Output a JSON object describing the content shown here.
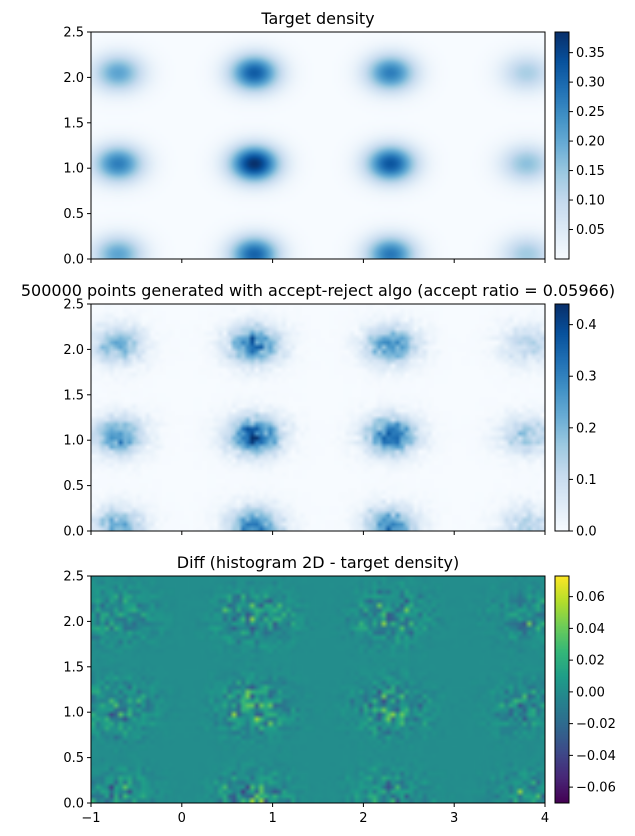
{
  "chart_data": [
    {
      "type": "heatmap",
      "title": "Target density",
      "xlim": [
        -1,
        4
      ],
      "ylim": [
        0,
        2.5
      ],
      "colormap": "Blues",
      "clim": [
        0,
        0.385
      ],
      "x_ticks": [
        "",
        "",
        "",
        "",
        "",
        ""
      ],
      "y_ticks": [
        "0.0",
        "0.5",
        "1.0",
        "1.5",
        "2.0",
        "2.5"
      ],
      "colorbar_ticks": [
        "0.05",
        "0.10",
        "0.15",
        "0.20",
        "0.25",
        "0.30",
        "0.35"
      ],
      "colorbar_values": [
        0.05,
        0.1,
        0.15,
        0.2,
        0.25,
        0.3,
        0.35
      ],
      "peaks": [
        {
          "x": -0.7,
          "y": 0.05,
          "value": 0.21
        },
        {
          "x": 0.8,
          "y": 0.05,
          "value": 0.31
        },
        {
          "x": 2.3,
          "y": 0.05,
          "value": 0.28
        },
        {
          "x": 3.8,
          "y": 0.05,
          "value": 0.14
        },
        {
          "x": -0.7,
          "y": 1.05,
          "value": 0.27
        },
        {
          "x": 0.8,
          "y": 1.05,
          "value": 0.385
        },
        {
          "x": 2.3,
          "y": 1.05,
          "value": 0.33
        },
        {
          "x": 3.8,
          "y": 1.05,
          "value": 0.16
        },
        {
          "x": -0.7,
          "y": 2.05,
          "value": 0.21
        },
        {
          "x": 0.8,
          "y": 2.05,
          "value": 0.32
        },
        {
          "x": 2.3,
          "y": 2.05,
          "value": 0.27
        },
        {
          "x": 3.8,
          "y": 2.05,
          "value": 0.13
        }
      ]
    },
    {
      "type": "heatmap",
      "title": "500000 points generated with accept-reject algo (accept ratio = 0.05966)",
      "xlim": [
        -1,
        4
      ],
      "ylim": [
        0,
        2.5
      ],
      "colormap": "Blues",
      "clim": [
        0,
        0.44
      ],
      "x_ticks": [
        "",
        "",
        "",
        "",
        "",
        ""
      ],
      "y_ticks": [
        "0.0",
        "0.5",
        "1.0",
        "1.5",
        "2.0",
        "2.5"
      ],
      "colorbar_ticks": [
        "0.0",
        "0.1",
        "0.2",
        "0.3",
        "0.4"
      ],
      "colorbar_values": [
        0,
        0.1,
        0.2,
        0.3,
        0.4
      ]
    },
    {
      "type": "heatmap",
      "title": "Diff (histogram 2D - target density)",
      "xlim": [
        -1,
        4
      ],
      "ylim": [
        0,
        2.5
      ],
      "colormap": "viridis",
      "clim": [
        -0.07,
        0.073
      ],
      "x_ticks": [
        "−1",
        "0",
        "1",
        "2",
        "3",
        "4"
      ],
      "y_ticks": [
        "0.0",
        "0.5",
        "1.0",
        "1.5",
        "2.0",
        "2.5"
      ],
      "colorbar_ticks": [
        "0.06",
        "0.04",
        "0.02",
        "0.00",
        "−0.02",
        "−0.04",
        "−0.06"
      ],
      "colorbar_values": [
        0.06,
        0.04,
        0.02,
        0.0,
        -0.02,
        -0.04,
        -0.06
      ]
    }
  ]
}
